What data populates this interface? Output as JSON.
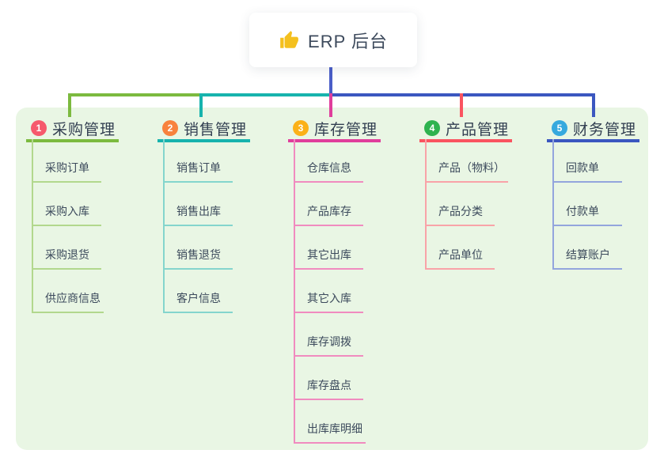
{
  "root": {
    "label": "ERP 后台",
    "icon": "thumbs-up-icon",
    "icon_color": "#f4c01e"
  },
  "canvas": {
    "panel_bg": "#e9f6e4",
    "page_bg": "#ffffff"
  },
  "connectors": {
    "root_stem_color": "#4a5ec8",
    "trunk_left_color": "#7cba3f",
    "trunk_mid_color": "#17b3ad",
    "trunk_right_color": "#3b57c0"
  },
  "branches": [
    {
      "number": "1",
      "label": "采购管理",
      "badge_color": "#f6596c",
      "line_color": "#7cba3f",
      "sub_line_color": "#b2d88d",
      "items": [
        "采购订单",
        "采购入库",
        "采购退货",
        "供应商信息"
      ]
    },
    {
      "number": "2",
      "label": "销售管理",
      "badge_color": "#f8823d",
      "line_color": "#17b3ad",
      "sub_line_color": "#84d5cd",
      "items": [
        "销售订单",
        "销售出库",
        "销售退货",
        "客户信息"
      ]
    },
    {
      "number": "3",
      "label": "库存管理",
      "badge_color": "#fbb118",
      "line_color": "#e03e9c",
      "sub_line_color": "#f08bbf",
      "items": [
        "仓库信息",
        "产品库存",
        "其它出库",
        "其它入库",
        "库存调拨",
        "库存盘点",
        "出库库明细"
      ]
    },
    {
      "number": "4",
      "label": "产品管理",
      "badge_color": "#2eb34f",
      "line_color": "#fa5460",
      "sub_line_color": "#f9a3a8",
      "items": [
        "产品（物料）",
        "产品分类",
        "产品单位"
      ]
    },
    {
      "number": "5",
      "label": "财务管理",
      "badge_color": "#36a9de",
      "line_color": "#3b57c0",
      "sub_line_color": "#93a5dd",
      "items": [
        "回款单",
        "付款单",
        "结算账户"
      ]
    }
  ]
}
